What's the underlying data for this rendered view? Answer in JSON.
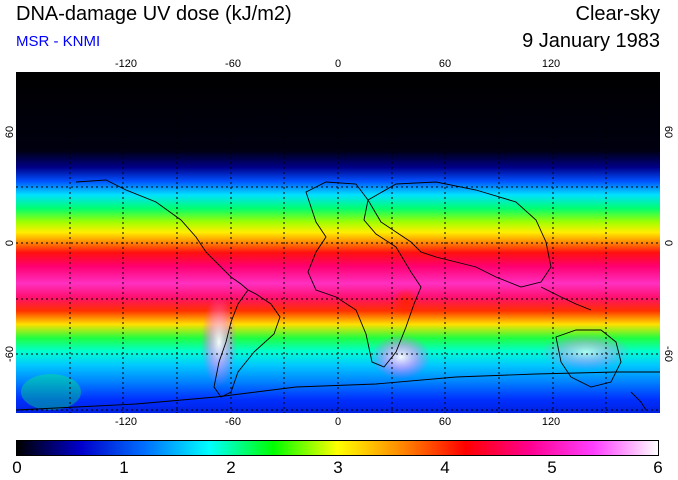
{
  "header": {
    "title": "DNA-damage UV dose (kJ/m2)",
    "source": "MSR - KNMI",
    "condition": "Clear-sky",
    "date": "9 January 1983"
  },
  "map": {
    "lon_ticks": [
      "-120",
      "-60",
      "0",
      "60",
      "120"
    ],
    "lat_ticks_left": [
      "60",
      "0",
      "-60"
    ],
    "lat_ticks_right": [
      "60",
      "0",
      "-60"
    ],
    "grid": "dotted 30-degree graticule",
    "projection": "equirectangular, longitude -180 to 180, latitude -78 to 90"
  },
  "colorbar": {
    "labels": [
      "0",
      "1",
      "2",
      "3",
      "4",
      "5",
      "6"
    ],
    "min": 0,
    "max": 6,
    "colors": [
      "#000000",
      "#0000cc",
      "#0070ff",
      "#00ffff",
      "#00ff00",
      "#ffff00",
      "#ff8800",
      "#ff0000",
      "#ff0090",
      "#ff40ff",
      "#ffffff"
    ]
  }
}
